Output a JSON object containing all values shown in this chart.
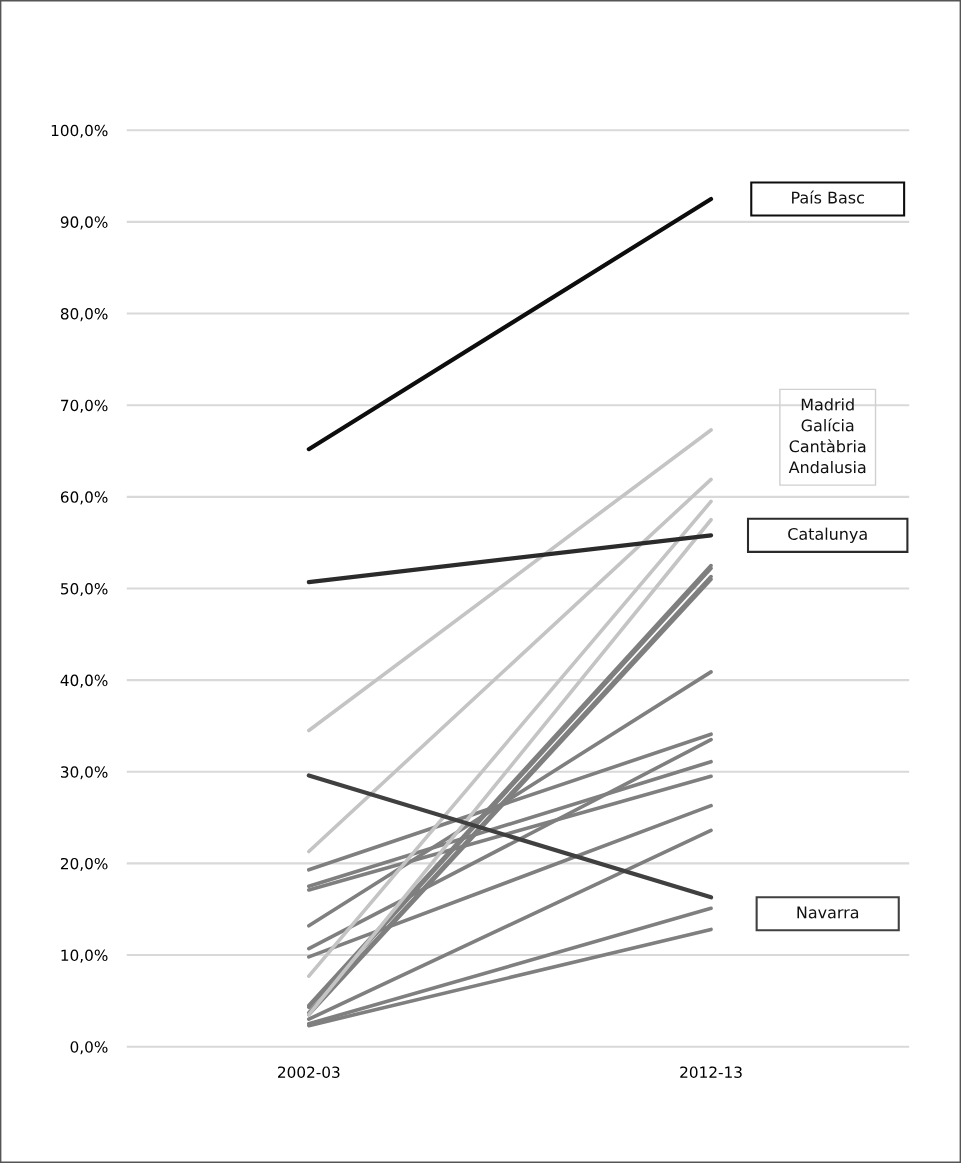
{
  "chart_data": {
    "type": "line",
    "categories": [
      "2002-03",
      "2012-13"
    ],
    "ylim": [
      0,
      100
    ],
    "yticks": [
      {
        "value": 0,
        "label": "0,0%"
      },
      {
        "value": 10,
        "label": "10,0%"
      },
      {
        "value": 20,
        "label": "20,0%"
      },
      {
        "value": 30,
        "label": "30,0%"
      },
      {
        "value": 40,
        "label": "40,0%"
      },
      {
        "value": 50,
        "label": "50,0%"
      },
      {
        "value": 60,
        "label": "60,0%"
      },
      {
        "value": 70,
        "label": "70,0%"
      },
      {
        "value": 80,
        "label": "80,0%"
      },
      {
        "value": 90,
        "label": "90,0%"
      },
      {
        "value": 100,
        "label": "100,0%"
      }
    ],
    "grid": "y",
    "legend": false,
    "marker": "none",
    "line_style": "solid",
    "series": [
      {
        "color": "#7f7f7f",
        "values": [
          19.3,
          34.1
        ]
      },
      {
        "color": "#7f7f7f",
        "values": [
          17.5,
          31.1
        ]
      },
      {
        "color": "#7f7f7f",
        "values": [
          17.1,
          29.5
        ]
      },
      {
        "color": "#7f7f7f",
        "values": [
          13.2,
          40.9
        ]
      },
      {
        "color": "#7f7f7f",
        "values": [
          10.7,
          33.5
        ]
      },
      {
        "color": "#7f7f7f",
        "values": [
          9.8,
          26.3
        ]
      },
      {
        "color": "#7f7f7f",
        "values": [
          4.5,
          52.5
        ]
      },
      {
        "color": "#7f7f7f",
        "values": [
          4.3,
          52.2
        ]
      },
      {
        "color": "#7f7f7f",
        "values": [
          3.7,
          51.3
        ]
      },
      {
        "color": "#7f7f7f",
        "values": [
          3.5,
          51.0
        ]
      },
      {
        "color": "#7f7f7f",
        "values": [
          3.0,
          23.6
        ]
      },
      {
        "color": "#7f7f7f",
        "values": [
          2.5,
          15.1
        ]
      },
      {
        "color": "#7f7f7f",
        "values": [
          2.3,
          12.8
        ]
      },
      {
        "name": "Madrid",
        "color": "#c4c4c4",
        "values": [
          34.5,
          67.3
        ]
      },
      {
        "name": "Galícia",
        "color": "#c4c4c4",
        "values": [
          21.3,
          61.9
        ]
      },
      {
        "name": "Cantàbria",
        "color": "#c4c4c4",
        "values": [
          7.7,
          59.5
        ]
      },
      {
        "name": "Andalusia",
        "color": "#c4c4c4",
        "values": [
          3.5,
          57.5
        ]
      },
      {
        "name": "Navarra",
        "color": "#404040",
        "values": [
          29.6,
          16.3
        ]
      },
      {
        "name": "Catalunya",
        "color": "#2b2b2b",
        "values": [
          50.7,
          55.8
        ]
      },
      {
        "name": "País Basc",
        "color": "#0d0d0d",
        "values": [
          65.2,
          92.5
        ]
      }
    ]
  }
}
